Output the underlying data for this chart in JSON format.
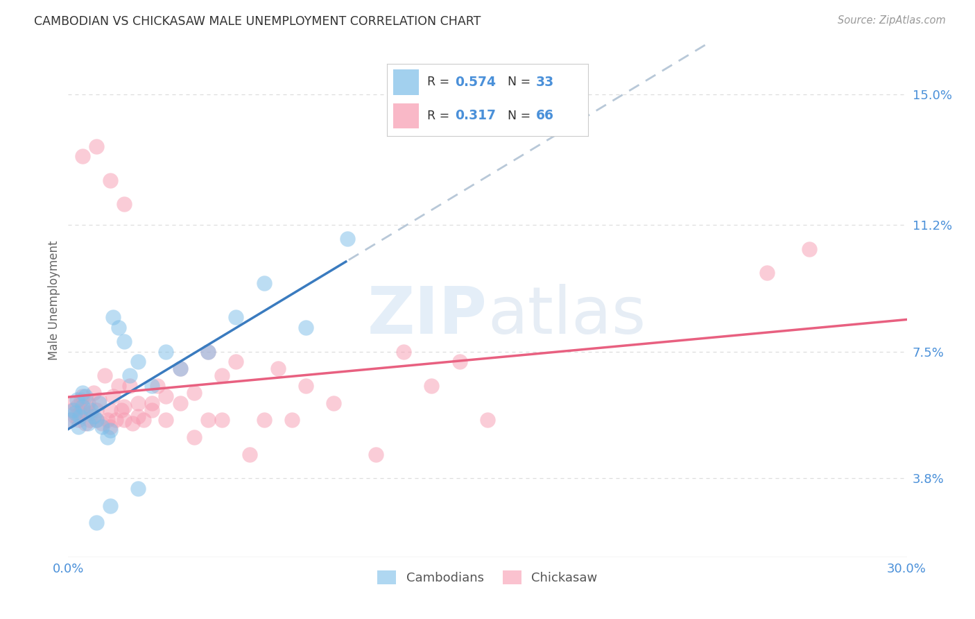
{
  "title": "CAMBODIAN VS CHICKASAW MALE UNEMPLOYMENT CORRELATION CHART",
  "source": "Source: ZipAtlas.com",
  "ylabel": "Male Unemployment",
  "ytick_values": [
    3.8,
    7.5,
    11.2,
    15.0
  ],
  "xlim": [
    0.0,
    30.0
  ],
  "ylim": [
    1.5,
    16.5
  ],
  "watermark": "ZIPatlas",
  "cambodian_color": "#7bbde8",
  "chickasaw_color": "#f79ab0",
  "regression_cambodian_color": "#3a7bbf",
  "regression_chickasaw_color": "#e86080",
  "regression_extrapolation_color": "#b8c8d8",
  "cambodian_R": 0.574,
  "cambodian_N": 33,
  "chickasaw_R": 0.317,
  "chickasaw_N": 66,
  "cambodian_points": [
    [
      0.1,
      5.5
    ],
    [
      0.2,
      5.8
    ],
    [
      0.25,
      5.7
    ],
    [
      0.3,
      6.1
    ],
    [
      0.35,
      5.3
    ],
    [
      0.4,
      5.6
    ],
    [
      0.5,
      5.9
    ],
    [
      0.5,
      6.3
    ],
    [
      0.6,
      6.2
    ],
    [
      0.7,
      5.4
    ],
    [
      0.8,
      5.8
    ],
    [
      0.9,
      5.6
    ],
    [
      1.0,
      5.5
    ],
    [
      1.1,
      6.0
    ],
    [
      1.2,
      5.3
    ],
    [
      1.4,
      5.0
    ],
    [
      1.5,
      5.2
    ],
    [
      1.6,
      8.5
    ],
    [
      1.8,
      8.2
    ],
    [
      2.0,
      7.8
    ],
    [
      2.2,
      6.8
    ],
    [
      2.5,
      7.2
    ],
    [
      3.0,
      6.5
    ],
    [
      3.5,
      7.5
    ],
    [
      4.0,
      7.0
    ],
    [
      5.0,
      7.5
    ],
    [
      6.0,
      8.5
    ],
    [
      7.0,
      9.5
    ],
    [
      8.5,
      8.2
    ],
    [
      10.0,
      10.8
    ],
    [
      1.5,
      3.0
    ],
    [
      2.5,
      3.5
    ],
    [
      1.0,
      2.5
    ]
  ],
  "chickasaw_points": [
    [
      0.1,
      5.5
    ],
    [
      0.15,
      5.8
    ],
    [
      0.2,
      6.0
    ],
    [
      0.25,
      5.6
    ],
    [
      0.3,
      5.9
    ],
    [
      0.35,
      5.5
    ],
    [
      0.4,
      5.7
    ],
    [
      0.45,
      6.1
    ],
    [
      0.5,
      5.8
    ],
    [
      0.5,
      6.2
    ],
    [
      0.6,
      5.4
    ],
    [
      0.65,
      5.9
    ],
    [
      0.7,
      6.0
    ],
    [
      0.75,
      5.5
    ],
    [
      0.8,
      5.7
    ],
    [
      0.9,
      6.3
    ],
    [
      1.0,
      5.5
    ],
    [
      1.0,
      5.8
    ],
    [
      1.1,
      6.1
    ],
    [
      1.2,
      5.4
    ],
    [
      1.3,
      6.8
    ],
    [
      1.4,
      5.5
    ],
    [
      1.5,
      5.3
    ],
    [
      1.5,
      5.8
    ],
    [
      1.6,
      6.2
    ],
    [
      1.7,
      5.5
    ],
    [
      1.8,
      6.5
    ],
    [
      1.9,
      5.8
    ],
    [
      2.0,
      5.5
    ],
    [
      2.0,
      5.9
    ],
    [
      2.2,
      6.5
    ],
    [
      2.3,
      5.4
    ],
    [
      2.5,
      6.0
    ],
    [
      2.5,
      5.6
    ],
    [
      2.7,
      5.5
    ],
    [
      3.0,
      6.0
    ],
    [
      3.0,
      5.8
    ],
    [
      3.2,
      6.5
    ],
    [
      3.5,
      5.5
    ],
    [
      3.5,
      6.2
    ],
    [
      4.0,
      7.0
    ],
    [
      4.0,
      6.0
    ],
    [
      4.5,
      6.3
    ],
    [
      4.5,
      5.0
    ],
    [
      5.0,
      7.5
    ],
    [
      5.0,
      5.5
    ],
    [
      5.5,
      6.8
    ],
    [
      5.5,
      5.5
    ],
    [
      6.0,
      7.2
    ],
    [
      6.5,
      4.5
    ],
    [
      7.0,
      5.5
    ],
    [
      7.5,
      7.0
    ],
    [
      8.0,
      5.5
    ],
    [
      8.5,
      6.5
    ],
    [
      9.5,
      6.0
    ],
    [
      11.0,
      4.5
    ],
    [
      12.0,
      7.5
    ],
    [
      13.0,
      6.5
    ],
    [
      14.0,
      7.2
    ],
    [
      15.0,
      5.5
    ],
    [
      0.5,
      13.2
    ],
    [
      1.0,
      13.5
    ],
    [
      1.5,
      12.5
    ],
    [
      2.0,
      11.8
    ],
    [
      25.0,
      9.8
    ],
    [
      26.5,
      10.5
    ]
  ],
  "title_color": "#333333",
  "source_color": "#999999",
  "tick_label_color": "#4a90d9",
  "background_color": "#ffffff",
  "grid_color": "#dddddd"
}
